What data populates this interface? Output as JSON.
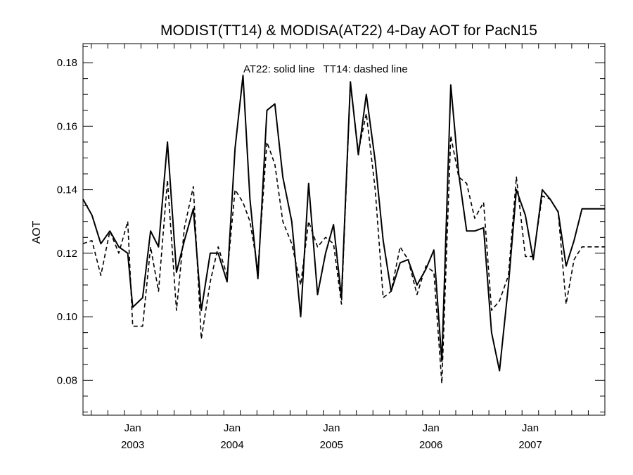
{
  "chart_data": {
    "type": "line",
    "title": "MODIST(TT14) & MODISA(AT22) 4-Day AOT for PacN15",
    "ylabel": "AOT",
    "xlabel": "",
    "annotation": "AT22: solid line   TT14: dashed line",
    "ylim": [
      0.069,
      0.186
    ],
    "xlim": [
      2002.5,
      2007.75
    ],
    "yticks": [
      "0.08",
      "0.10",
      "0.12",
      "0.14",
      "0.16",
      "0.18"
    ],
    "xticks": [
      {
        "month": "Jan",
        "year": "2003"
      },
      {
        "month": "Jan",
        "year": "2004"
      },
      {
        "month": "Jan",
        "year": "2005"
      },
      {
        "month": "Jan",
        "year": "2006"
      },
      {
        "month": "Jan",
        "year": "2007"
      }
    ],
    "series": [
      {
        "name": "AT22",
        "style": "solid",
        "x": [
          2002.5,
          2002.59,
          2002.68,
          2002.77,
          2002.86,
          2002.95,
          2003.0,
          2003.1,
          2003.18,
          2003.26,
          2003.35,
          2003.44,
          2003.52,
          2003.61,
          2003.69,
          2003.78,
          2003.86,
          2003.95,
          2004.03,
          2004.11,
          2004.18,
          2004.26,
          2004.35,
          2004.43,
          2004.51,
          2004.6,
          2004.69,
          2004.77,
          2004.86,
          2004.94,
          2005.02,
          2005.1,
          2005.19,
          2005.27,
          2005.35,
          2005.44,
          2005.52,
          2005.6,
          2005.69,
          2005.77,
          2005.86,
          2005.95,
          2006.03,
          2006.11,
          2006.2,
          2006.28,
          2006.36,
          2006.44,
          2006.53,
          2006.61,
          2006.69,
          2006.78,
          2006.86,
          2006.95,
          2007.03,
          2007.12,
          2007.2,
          2007.28,
          2007.36,
          2007.44,
          2007.52,
          2007.61,
          2007.69,
          2007.75
        ],
        "values": [
          0.137,
          0.132,
          0.123,
          0.127,
          0.122,
          0.12,
          0.103,
          0.106,
          0.127,
          0.122,
          0.155,
          0.114,
          0.124,
          0.134,
          0.102,
          0.12,
          0.12,
          0.111,
          0.153,
          0.176,
          0.137,
          0.112,
          0.165,
          0.167,
          0.144,
          0.13,
          0.1,
          0.142,
          0.107,
          0.12,
          0.129,
          0.106,
          0.174,
          0.151,
          0.17,
          0.149,
          0.124,
          0.108,
          0.117,
          0.118,
          0.11,
          0.115,
          0.121,
          0.086,
          0.173,
          0.145,
          0.127,
          0.127,
          0.128,
          0.095,
          0.083,
          0.11,
          0.14,
          0.132,
          0.118,
          0.14,
          0.137,
          0.133,
          0.116,
          0.124,
          0.134,
          0.134,
          0.134,
          0.134
        ]
      },
      {
        "name": "TT14",
        "style": "dashed",
        "x": [
          2002.5,
          2002.59,
          2002.68,
          2002.77,
          2002.86,
          2002.95,
          2003.0,
          2003.1,
          2003.18,
          2003.26,
          2003.35,
          2003.44,
          2003.52,
          2003.61,
          2003.69,
          2003.78,
          2003.86,
          2003.95,
          2004.03,
          2004.11,
          2004.18,
          2004.26,
          2004.35,
          2004.43,
          2004.51,
          2004.6,
          2004.69,
          2004.77,
          2004.86,
          2004.94,
          2005.02,
          2005.1,
          2005.19,
          2005.27,
          2005.35,
          2005.44,
          2005.52,
          2005.6,
          2005.69,
          2005.77,
          2005.86,
          2005.95,
          2006.03,
          2006.11,
          2006.2,
          2006.28,
          2006.36,
          2006.44,
          2006.53,
          2006.61,
          2006.69,
          2006.78,
          2006.86,
          2006.95,
          2007.03,
          2007.12,
          2007.2,
          2007.28,
          2007.36,
          2007.44,
          2007.52,
          2007.61,
          2007.69,
          2007.75
        ],
        "values": [
          0.123,
          0.124,
          0.113,
          0.127,
          0.12,
          0.13,
          0.097,
          0.097,
          0.122,
          0.108,
          0.143,
          0.102,
          0.128,
          0.141,
          0.093,
          0.111,
          0.122,
          0.113,
          0.14,
          0.136,
          0.13,
          0.115,
          0.155,
          0.148,
          0.13,
          0.123,
          0.11,
          0.13,
          0.122,
          0.125,
          0.123,
          0.104,
          0.173,
          0.152,
          0.164,
          0.14,
          0.106,
          0.108,
          0.122,
          0.118,
          0.107,
          0.116,
          0.114,
          0.079,
          0.157,
          0.144,
          0.142,
          0.131,
          0.136,
          0.102,
          0.105,
          0.113,
          0.144,
          0.119,
          0.119,
          0.138,
          0.137,
          0.133,
          0.104,
          0.118,
          0.122,
          0.122,
          0.122,
          0.122
        ]
      }
    ]
  }
}
